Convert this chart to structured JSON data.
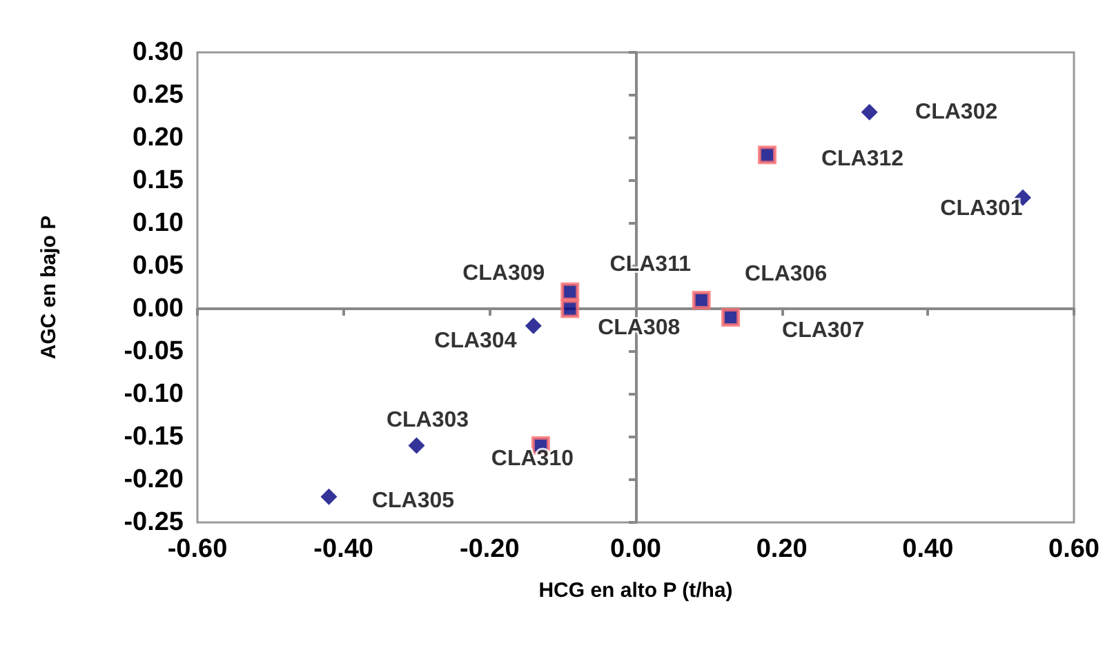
{
  "chart_data": {
    "type": "scatter",
    "xlabel": "HCG en alto P (t/ha)",
    "ylabel": "AGC en bajo P",
    "xlim": [
      -0.6,
      0.6
    ],
    "xticks": [
      {
        "value": -0.6,
        "label": "-0.60"
      },
      {
        "value": -0.4,
        "label": "-0.40"
      },
      {
        "value": -0.2,
        "label": "-0.20"
      },
      {
        "value": 0,
        "label": "0.00"
      },
      {
        "value": 0.2,
        "label": "0.20"
      },
      {
        "value": 0.4,
        "label": "0.40"
      },
      {
        "value": 0.6,
        "label": "0.60"
      }
    ],
    "ylim": [
      -0.25,
      0.3
    ],
    "yticks": [
      {
        "value": -0.25,
        "label": "-0.25"
      },
      {
        "value": -0.2,
        "label": "-0.20"
      },
      {
        "value": -0.15,
        "label": "-0.15"
      },
      {
        "value": -0.1,
        "label": "-0.10"
      },
      {
        "value": -0.05,
        "label": "-0.05"
      },
      {
        "value": 0,
        "label": "0.00"
      },
      {
        "value": 0.05,
        "label": "0.05"
      },
      {
        "value": 0.1,
        "label": "0.10"
      },
      {
        "value": 0.15,
        "label": "0.15"
      },
      {
        "value": 0.2,
        "label": "0.20"
      },
      {
        "value": 0.25,
        "label": "0.25"
      },
      {
        "value": 0.3,
        "label": "0.30"
      }
    ],
    "series": [
      {
        "color": "#000080",
        "marker": "diamond",
        "x": [
          0.32,
          0.53,
          -0.14,
          -0.3,
          -0.42
        ],
        "values": [
          0.23,
          0.13,
          -0.02,
          -0.16,
          -0.22
        ]
      },
      {
        "color": "#000080",
        "marker": "square",
        "x": [
          0.18,
          -0.09,
          -0.09,
          0.09,
          0.13,
          -0.13
        ],
        "values": [
          0.18,
          0.02,
          0.0,
          0.01,
          -0.01,
          -0.16
        ]
      }
    ],
    "annotations": [
      {
        "text": "CLA302",
        "x": 0.32,
        "y": 0.23
      },
      {
        "text": "CLA312",
        "x": 0.18,
        "y": 0.18
      },
      {
        "text": "CLA301",
        "x": 0.53,
        "y": 0.13
      },
      {
        "text": "CLA309",
        "x": -0.09,
        "y": 0.02
      },
      {
        "text": "CLA311",
        "x": 0.09,
        "y": 0.01
      },
      {
        "text": "CLA306",
        "x": 0.13,
        "y": -0.01
      },
      {
        "text": "CLA308",
        "x": -0.09,
        "y": 0.0
      },
      {
        "text": "CLA307",
        "x": 0.13,
        "y": -0.01
      },
      {
        "text": "CLA304",
        "x": -0.14,
        "y": -0.02
      },
      {
        "text": "CLA303",
        "x": -0.3,
        "y": -0.16
      },
      {
        "text": "CLA310",
        "x": -0.13,
        "y": -0.16
      },
      {
        "text": "CLA305",
        "x": -0.42,
        "y": -0.22
      }
    ]
  }
}
